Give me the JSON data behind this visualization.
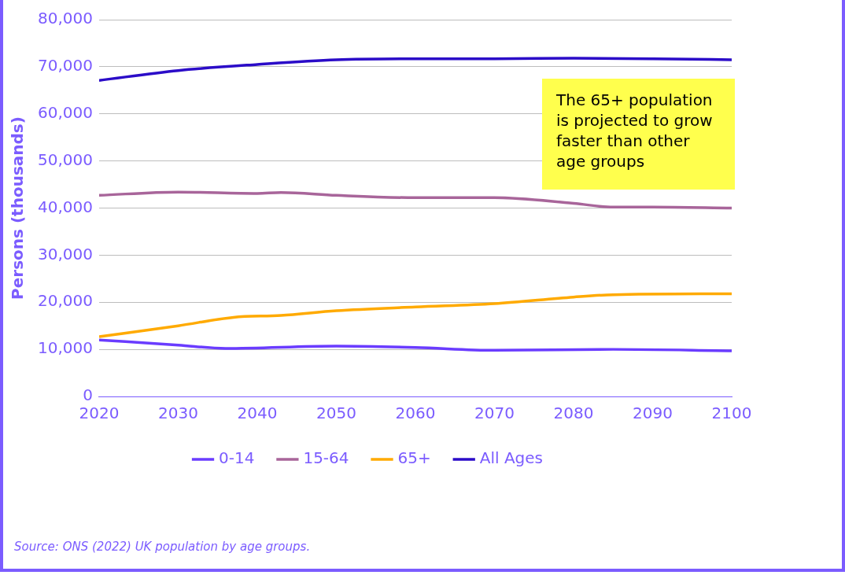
{
  "chart_data": {
    "type": "line",
    "ylabel": "Persons (thousands)",
    "xlim": [
      2020,
      2100
    ],
    "xticks": [
      2020,
      2030,
      2040,
      2050,
      2060,
      2070,
      2080,
      2090,
      2100
    ],
    "ylim": [
      0,
      80000
    ],
    "yticks": [
      0,
      {
        "value": 10000,
        "label": "10,000"
      },
      {
        "value": 20000,
        "label": "20,000"
      },
      {
        "value": 30000,
        "label": "30,000"
      },
      {
        "value": 40000,
        "label": "40,000"
      },
      {
        "value": 50000,
        "label": "50,000"
      },
      {
        "value": 60000,
        "label": "60,000"
      },
      {
        "value": 70000,
        "label": "70,000"
      },
      {
        "value": 80000,
        "label": "80,000"
      }
    ],
    "grid": "y",
    "legend": "bottom",
    "marker": "none",
    "series": [
      {
        "name": "0-14",
        "color": "#6a3cff",
        "x": [
          2020,
          2030,
          2036,
          2050,
          2060,
          2070,
          2085,
          2100
        ],
        "values": [
          12000,
          10900,
          10200,
          10700,
          10400,
          9800,
          10000,
          9700
        ]
      },
      {
        "name": "15-64",
        "color": "#a8659a",
        "x": [
          2020,
          2030,
          2040,
          2043,
          2050,
          2060,
          2070,
          2080,
          2085,
          2090,
          2100
        ],
        "values": [
          42700,
          43400,
          43100,
          43300,
          42700,
          42200,
          42200,
          41000,
          40200,
          40200,
          40000
        ]
      },
      {
        "name": "65+",
        "color": "#ffaa00",
        "x": [
          2020,
          2030,
          2037,
          2043,
          2050,
          2060,
          2070,
          2080,
          2085,
          2100
        ],
        "values": [
          12700,
          15000,
          16800,
          17200,
          18200,
          19000,
          19700,
          21100,
          21600,
          21800
        ]
      },
      {
        "name": "All Ages",
        "color": "#2b0cc8",
        "x": [
          2020,
          2030,
          2040,
          2050,
          2060,
          2070,
          2080,
          2090,
          2100
        ],
        "values": [
          67100,
          69200,
          70500,
          71500,
          71700,
          71700,
          71800,
          71700,
          71500
        ]
      }
    ],
    "annotations": [
      "The 65+ population is projected to grow faster than other age groups",
      "Source: ONS (2022) UK population by age groups."
    ]
  }
}
